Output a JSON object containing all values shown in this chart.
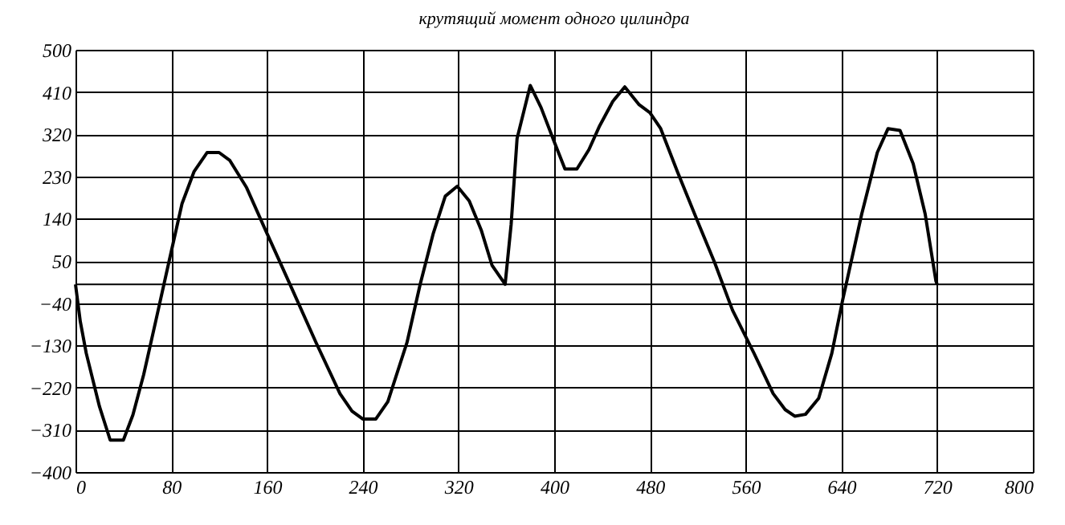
{
  "chart_data": {
    "type": "line",
    "title": "крутящий момент одного цилиндра",
    "x": [
      0,
      4,
      9,
      20,
      29,
      40,
      48,
      57,
      67,
      78,
      89,
      99,
      110,
      120,
      129,
      143,
      158,
      169,
      181,
      201,
      221,
      231,
      240,
      251,
      261,
      277,
      288,
      299,
      309,
      319,
      329,
      339,
      348,
      359,
      364,
      369,
      380,
      389,
      400,
      409,
      419,
      429,
      438,
      449,
      459,
      471,
      480,
      489,
      503,
      521,
      534,
      549,
      567,
      583,
      593,
      601,
      610,
      621,
      632,
      641,
      657,
      670,
      679,
      689,
      700,
      710,
      719,
      720
    ],
    "series": [
      {
        "color": "#000000",
        "values": [
          0,
          -79,
          -147,
          -260,
          -332,
          -332,
          -278,
          -192,
          -79,
          47,
          172,
          240,
          281,
          281,
          264,
          206,
          120,
          58,
          -10,
          -124,
          -233,
          -270,
          -287,
          -287,
          -250,
          -124,
          0,
          109,
          188,
          209,
          178,
          116,
          41,
          0,
          127,
          311,
          424,
          377,
          304,
          246,
          246,
          287,
          338,
          390,
          421,
          383,
          366,
          332,
          240,
          127,
          47,
          -55,
          -147,
          -233,
          -267,
          -281,
          -277,
          -243,
          -147,
          -34,
          150,
          281,
          332,
          328,
          257,
          150,
          7,
          0
        ]
      }
    ],
    "xlim": [
      0,
      800
    ],
    "xticks": [
      0,
      80,
      160,
      240,
      320,
      400,
      480,
      560,
      640,
      720,
      800
    ],
    "ylim": [
      -400,
      500
    ],
    "yticks": [
      500,
      410,
      320,
      230,
      140,
      50,
      -40,
      -130,
      -220,
      -310,
      -400
    ],
    "grid": true,
    "marker": "none",
    "line_style": "solid"
  }
}
